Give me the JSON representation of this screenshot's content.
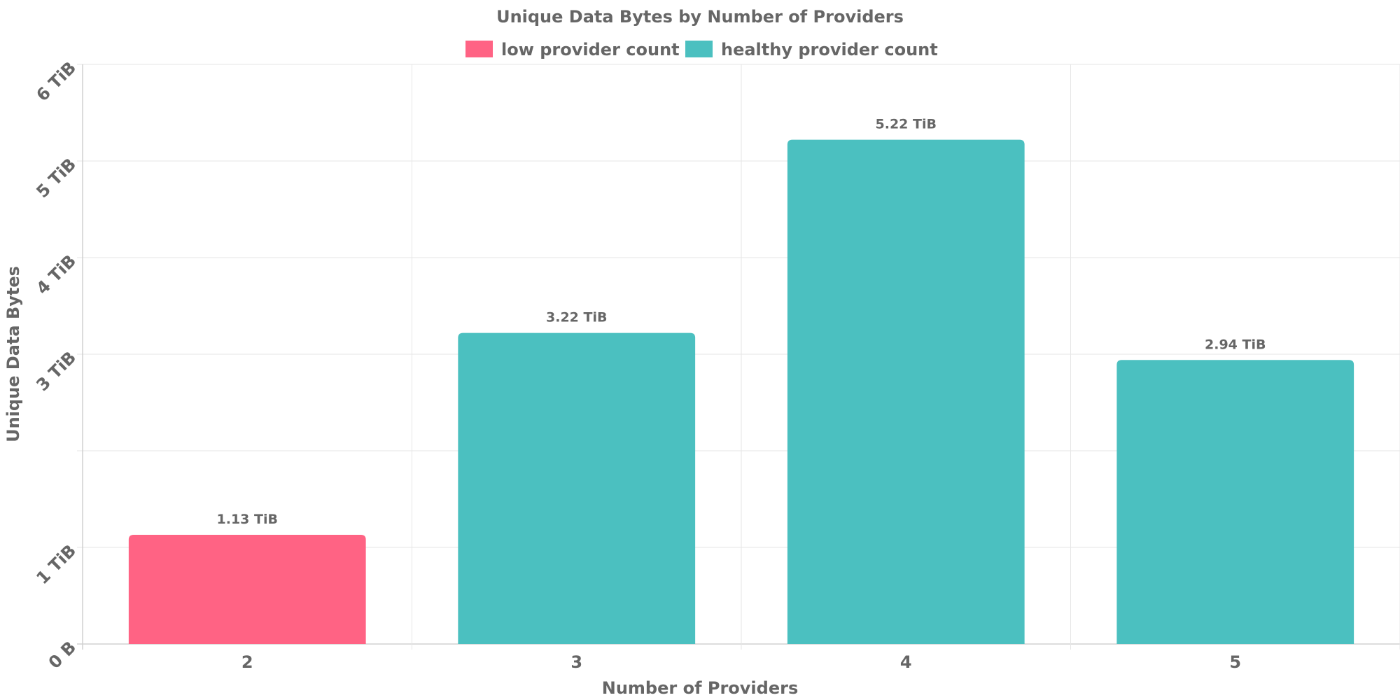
{
  "chart_data": {
    "type": "bar",
    "title": "Unique Data Bytes by Number of Providers",
    "xlabel": "Number of Providers",
    "ylabel": "Unique Data Bytes",
    "categories": [
      "2",
      "3",
      "4",
      "5"
    ],
    "values": [
      1.13,
      3.22,
      5.22,
      2.94
    ],
    "value_labels": [
      "1.13 TiB",
      "3.22 TiB",
      "5.22 TiB",
      "2.94 TiB"
    ],
    "bar_series": [
      "low provider count",
      "healthy provider count",
      "healthy provider count",
      "healthy provider count"
    ],
    "y_unit": "TiB",
    "ylim": [
      0,
      6
    ],
    "y_ticks": [
      {
        "value": 0,
        "label": "0 B"
      },
      {
        "value": 1,
        "label": "1 TiB"
      },
      {
        "value": 3,
        "label": "3 TiB"
      },
      {
        "value": 4,
        "label": "4 TiB"
      },
      {
        "value": 5,
        "label": "5 TiB"
      },
      {
        "value": 6,
        "label": "6 TiB"
      }
    ],
    "legend": {
      "placement": "top-center",
      "items": [
        {
          "name": "low provider count",
          "color": "#ff6384"
        },
        {
          "name": "healthy provider count",
          "color": "#4bc0c0"
        }
      ]
    },
    "grid": true
  }
}
